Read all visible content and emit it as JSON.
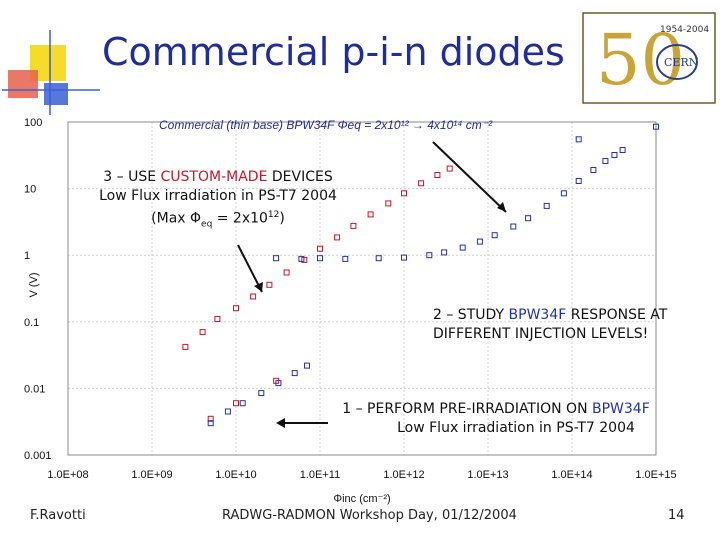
{
  "slide": {
    "title": "Commercial p-i-n diodes",
    "page_number": "14",
    "footer_author": "F.Ravotti",
    "footer_event": "RADWG-RADMON Workshop Day, 01/12/2004"
  },
  "logo": {
    "years": "1954-2004",
    "name": "CERN",
    "number": "50"
  },
  "colors": {
    "title": "#1f2c9a",
    "red_series": "#c3182a",
    "blue_series": "#2233a8",
    "deco_yellow": "#f5dc2a",
    "deco_red": "#e8604c",
    "deco_blue": "#3a5fd6"
  },
  "annotations": {
    "a3": {
      "pre": "3 – USE ",
      "hl": "CUSTOM-MADE",
      "post": " DEVICES",
      "line2": "Low Flux irradiation in PS-T7 2004",
      "line3_pre": "(Max Φ",
      "line3_sub": "eq",
      "line3_mid": " = 2x10",
      "line3_sup": "12",
      "line3_end": ")"
    },
    "a2": {
      "pre": "2 – STUDY ",
      "hl": "BPW34F",
      "post": " RESPONSE AT",
      "line2": "DIFFERENT INJECTION LEVELS!"
    },
    "a1": {
      "pre": "1 – PERFORM PRE-IRRADIATION ON ",
      "hl": "BPW34F",
      "line2": "Low Flux irradiation in PS-T7 2004"
    }
  },
  "chart_data": {
    "type": "scatter",
    "title": "Commercial (thin base) BPW34F Φeq = 2x10¹² → 4x10¹⁴ cm⁻²",
    "xlabel": "Φinc (cm⁻²)",
    "ylabel": "V (V)",
    "xscale": "log",
    "yscale": "log",
    "xlim": [
      100000000.0,
      1000000000000000.0
    ],
    "ylim": [
      0.001,
      100
    ],
    "x_tick_labels": [
      "1.0E+08",
      "1.0E+09",
      "1.0E+10",
      "1.0E+11",
      "1.0E+12",
      "1.0E+13",
      "1.0E+14",
      "1.0E+15"
    ],
    "y_tick_labels": [
      "0.001",
      "0.01",
      "0.1",
      "1",
      "10",
      "100"
    ],
    "series": [
      {
        "name": "custom-made devices (red)",
        "color": "#c3182a",
        "points": [
          [
            5000000000.0,
            0.0035
          ],
          [
            10000000000.0,
            0.006
          ],
          [
            30000000000.0,
            0.013
          ],
          [
            2500000000.0,
            0.042
          ],
          [
            4000000000.0,
            0.07
          ],
          [
            6000000000.0,
            0.11
          ],
          [
            10000000000.0,
            0.16
          ],
          [
            16000000000.0,
            0.24
          ],
          [
            25000000000.0,
            0.36
          ],
          [
            40000000000.0,
            0.55
          ],
          [
            65000000000.0,
            0.85
          ],
          [
            100000000000.0,
            1.25
          ],
          [
            160000000000.0,
            1.85
          ],
          [
            250000000000.0,
            2.75
          ],
          [
            400000000000.0,
            4.1
          ],
          [
            650000000000.0,
            6.0
          ],
          [
            1000000000000.0,
            8.5
          ],
          [
            1600000000000.0,
            12.0
          ],
          [
            2500000000000.0,
            16.0
          ],
          [
            3500000000000.0,
            20.0
          ]
        ]
      },
      {
        "name": "BPW34F pre-irradiation (blue, low)",
        "color": "#2233a8",
        "points": [
          [
            5000000000.0,
            0.003
          ],
          [
            8000000000.0,
            0.0045
          ],
          [
            12000000000.0,
            0.006
          ],
          [
            20000000000.0,
            0.0085
          ],
          [
            32000000000.0,
            0.012
          ],
          [
            50000000000.0,
            0.017
          ],
          [
            70000000000.0,
            0.022
          ]
        ]
      },
      {
        "name": "BPW34F response (blue, upper)",
        "color": "#2233a8",
        "points": [
          [
            30000000000.0,
            0.9
          ],
          [
            60000000000.0,
            0.88
          ],
          [
            100000000000.0,
            0.9
          ],
          [
            200000000000.0,
            0.88
          ],
          [
            500000000000.0,
            0.9
          ],
          [
            1000000000000.0,
            0.92
          ],
          [
            2000000000000.0,
            1.0
          ],
          [
            3000000000000.0,
            1.1
          ],
          [
            5000000000000.0,
            1.3
          ],
          [
            8000000000000.0,
            1.6
          ],
          [
            12000000000000.0,
            2.0
          ],
          [
            20000000000000.0,
            2.7
          ],
          [
            30000000000000.0,
            3.6
          ],
          [
            50000000000000.0,
            5.5
          ],
          [
            80000000000000.0,
            8.5
          ],
          [
            120000000000000.0,
            13.0
          ],
          [
            180000000000000.0,
            19.0
          ],
          [
            250000000000000.0,
            26.0
          ],
          [
            320000000000000.0,
            32.0
          ],
          [
            400000000000000.0,
            38.0
          ],
          [
            120000000000000.0,
            55.0
          ],
          [
            1000000000000000.0,
            85.0
          ]
        ]
      }
    ]
  }
}
